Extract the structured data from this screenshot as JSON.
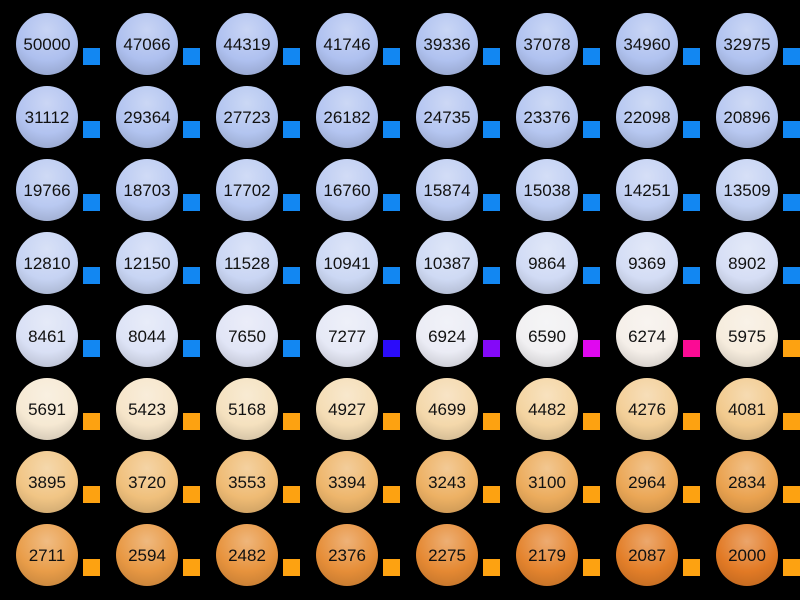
{
  "colors": {
    "background": "#000000",
    "label_text": "#111111",
    "swatch_blue": "#1287f2",
    "swatch_orange": "#fda211"
  },
  "chart_data": {
    "type": "table",
    "title": "",
    "rows": 8,
    "cols": 8,
    "legend_position": "none",
    "temperatures": [
      50000,
      47066,
      44319,
      41746,
      39336,
      37078,
      34960,
      32975,
      31112,
      29364,
      27723,
      26182,
      24735,
      23376,
      22098,
      20896,
      19766,
      18703,
      17702,
      16760,
      15874,
      15038,
      14251,
      13509,
      12810,
      12150,
      11528,
      10941,
      10387,
      9864,
      9369,
      8902,
      8461,
      8044,
      7650,
      7277,
      6924,
      6590,
      6274,
      5975,
      5691,
      5423,
      5168,
      4927,
      4699,
      4482,
      4276,
      4081,
      3895,
      3720,
      3553,
      3394,
      3243,
      3100,
      2964,
      2834,
      2711,
      2594,
      2482,
      2376,
      2275,
      2179,
      2087,
      2000
    ],
    "circle_colors": [
      "#aec0ef",
      "#aec0ef",
      "#afc1f0",
      "#afc1f0",
      "#b0c2f0",
      "#b0c2f0",
      "#b1c3f0",
      "#b1c3f0",
      "#b2c3f0",
      "#b2c4f0",
      "#b3c5f0",
      "#b4c5f1",
      "#b5c6f1",
      "#b6c7f1",
      "#b7c8f1",
      "#b8c8f1",
      "#b9c9f1",
      "#bacaf2",
      "#bbcbf2",
      "#bdccf2",
      "#becdf2",
      "#c0cff3",
      "#c2d0f3",
      "#c4d2f3",
      "#c6d3f3",
      "#c8d5f4",
      "#cad6f4",
      "#ccd8f4",
      "#cfdaf4",
      "#d1dbf5",
      "#d4ddf5",
      "#d6def5",
      "#d9e0f5",
      "#dde3f6",
      "#e1e5f6",
      "#e6e9f6",
      "#ebecf5",
      "#f1f0f2",
      "#f5efe9",
      "#f6ecdd",
      "#f6e9d3",
      "#f6e5c9",
      "#f5e1bf",
      "#f5ddb5",
      "#f4d8ab",
      "#f4d4a1",
      "#f3cf98",
      "#f2ca8e",
      "#f1c585",
      "#f0c07c",
      "#efbb74",
      "#eeb66c",
      "#edb164",
      "#ecac5d",
      "#eba756",
      "#eaa24f",
      "#e99d49",
      "#e89843",
      "#e7933d",
      "#e68e38",
      "#e58933",
      "#e4842e",
      "#e37f29",
      "#e27a25"
    ],
    "square_colors": [
      "#1287f2",
      "#1287f2",
      "#1287f2",
      "#1287f2",
      "#1287f2",
      "#1287f2",
      "#1287f2",
      "#1287f2",
      "#1287f2",
      "#1287f2",
      "#1287f2",
      "#1287f2",
      "#1287f2",
      "#1287f2",
      "#1287f2",
      "#1287f2",
      "#1287f2",
      "#1287f2",
      "#1287f2",
      "#1287f2",
      "#1287f2",
      "#1287f2",
      "#1287f2",
      "#1287f2",
      "#1287f2",
      "#1287f2",
      "#1287f2",
      "#1287f2",
      "#1287f2",
      "#1287f2",
      "#1287f2",
      "#1287f2",
      "#1287f2",
      "#1287f2",
      "#1287f2",
      "#2b0cfa",
      "#8409f8",
      "#e008f0",
      "#fb0b94",
      "#fda211",
      "#fda211",
      "#fda211",
      "#fda211",
      "#fda211",
      "#fda211",
      "#fda211",
      "#fda211",
      "#fda211",
      "#fda211",
      "#fda211",
      "#fda211",
      "#fda211",
      "#fda211",
      "#fda211",
      "#fda211",
      "#fda211",
      "#fda211",
      "#fda211",
      "#fda211",
      "#fda211",
      "#fda211",
      "#fda211",
      "#fda211",
      "#fda211"
    ]
  }
}
